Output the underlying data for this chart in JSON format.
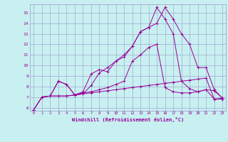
{
  "xlabel": "Windchill (Refroidissement éolien,°C)",
  "bg_color": "#c8f0f0",
  "line_color": "#990099",
  "grid_color": "#9999cc",
  "xlim": [
    -0.5,
    23.4
  ],
  "ylim": [
    5.7,
    15.8
  ],
  "yticks": [
    6,
    7,
    8,
    9,
    10,
    11,
    12,
    13,
    14,
    15
  ],
  "xticks": [
    0,
    1,
    2,
    3,
    4,
    5,
    6,
    7,
    8,
    9,
    10,
    11,
    12,
    13,
    14,
    15,
    16,
    17,
    18,
    19,
    20,
    21,
    22,
    23
  ],
  "line1_x": [
    0,
    1,
    2,
    3,
    4,
    5,
    6,
    7,
    8,
    9,
    10,
    11,
    12,
    13,
    14,
    15,
    16,
    17,
    18,
    19,
    20,
    21,
    22,
    23
  ],
  "line1_y": [
    5.8,
    7.0,
    7.1,
    7.1,
    7.1,
    7.2,
    7.3,
    7.4,
    7.5,
    7.6,
    7.7,
    7.8,
    7.9,
    8.0,
    8.1,
    8.2,
    8.3,
    8.4,
    8.5,
    8.6,
    8.7,
    8.8,
    6.8,
    6.9
  ],
  "line2_x": [
    0,
    1,
    2,
    3,
    4,
    5,
    6,
    7,
    8,
    9,
    10,
    11,
    12,
    13,
    14,
    15,
    16,
    17,
    18,
    19,
    20,
    21,
    22,
    23
  ],
  "line2_y": [
    5.8,
    7.0,
    7.1,
    8.5,
    8.2,
    7.2,
    7.5,
    9.2,
    9.6,
    9.4,
    10.4,
    10.8,
    11.8,
    13.2,
    13.6,
    14.0,
    15.5,
    14.4,
    13.0,
    12.0,
    9.8,
    9.8,
    7.7,
    6.9
  ],
  "line3_x": [
    2,
    3,
    4,
    5,
    6,
    7,
    8,
    9,
    10,
    11,
    12,
    13,
    14,
    15,
    16,
    17,
    18,
    19,
    20,
    21,
    22,
    23
  ],
  "line3_y": [
    7.1,
    8.5,
    8.2,
    7.2,
    7.4,
    7.5,
    7.7,
    7.9,
    8.2,
    8.5,
    10.4,
    11.0,
    11.7,
    12.0,
    7.9,
    7.5,
    7.4,
    7.4,
    7.5,
    7.7,
    7.6,
    6.9
  ],
  "line4_x": [
    0,
    1,
    2,
    3,
    4,
    5,
    6,
    7,
    8,
    9,
    10,
    11,
    12,
    13,
    14,
    15,
    16,
    17,
    18,
    19,
    20,
    21,
    22,
    23
  ],
  "line4_y": [
    5.8,
    7.0,
    7.1,
    7.1,
    7.1,
    7.2,
    7.3,
    8.1,
    9.3,
    9.8,
    10.4,
    11.0,
    11.8,
    13.2,
    13.6,
    15.5,
    14.4,
    13.0,
    8.5,
    7.8,
    7.5,
    7.7,
    6.8,
    6.8
  ]
}
